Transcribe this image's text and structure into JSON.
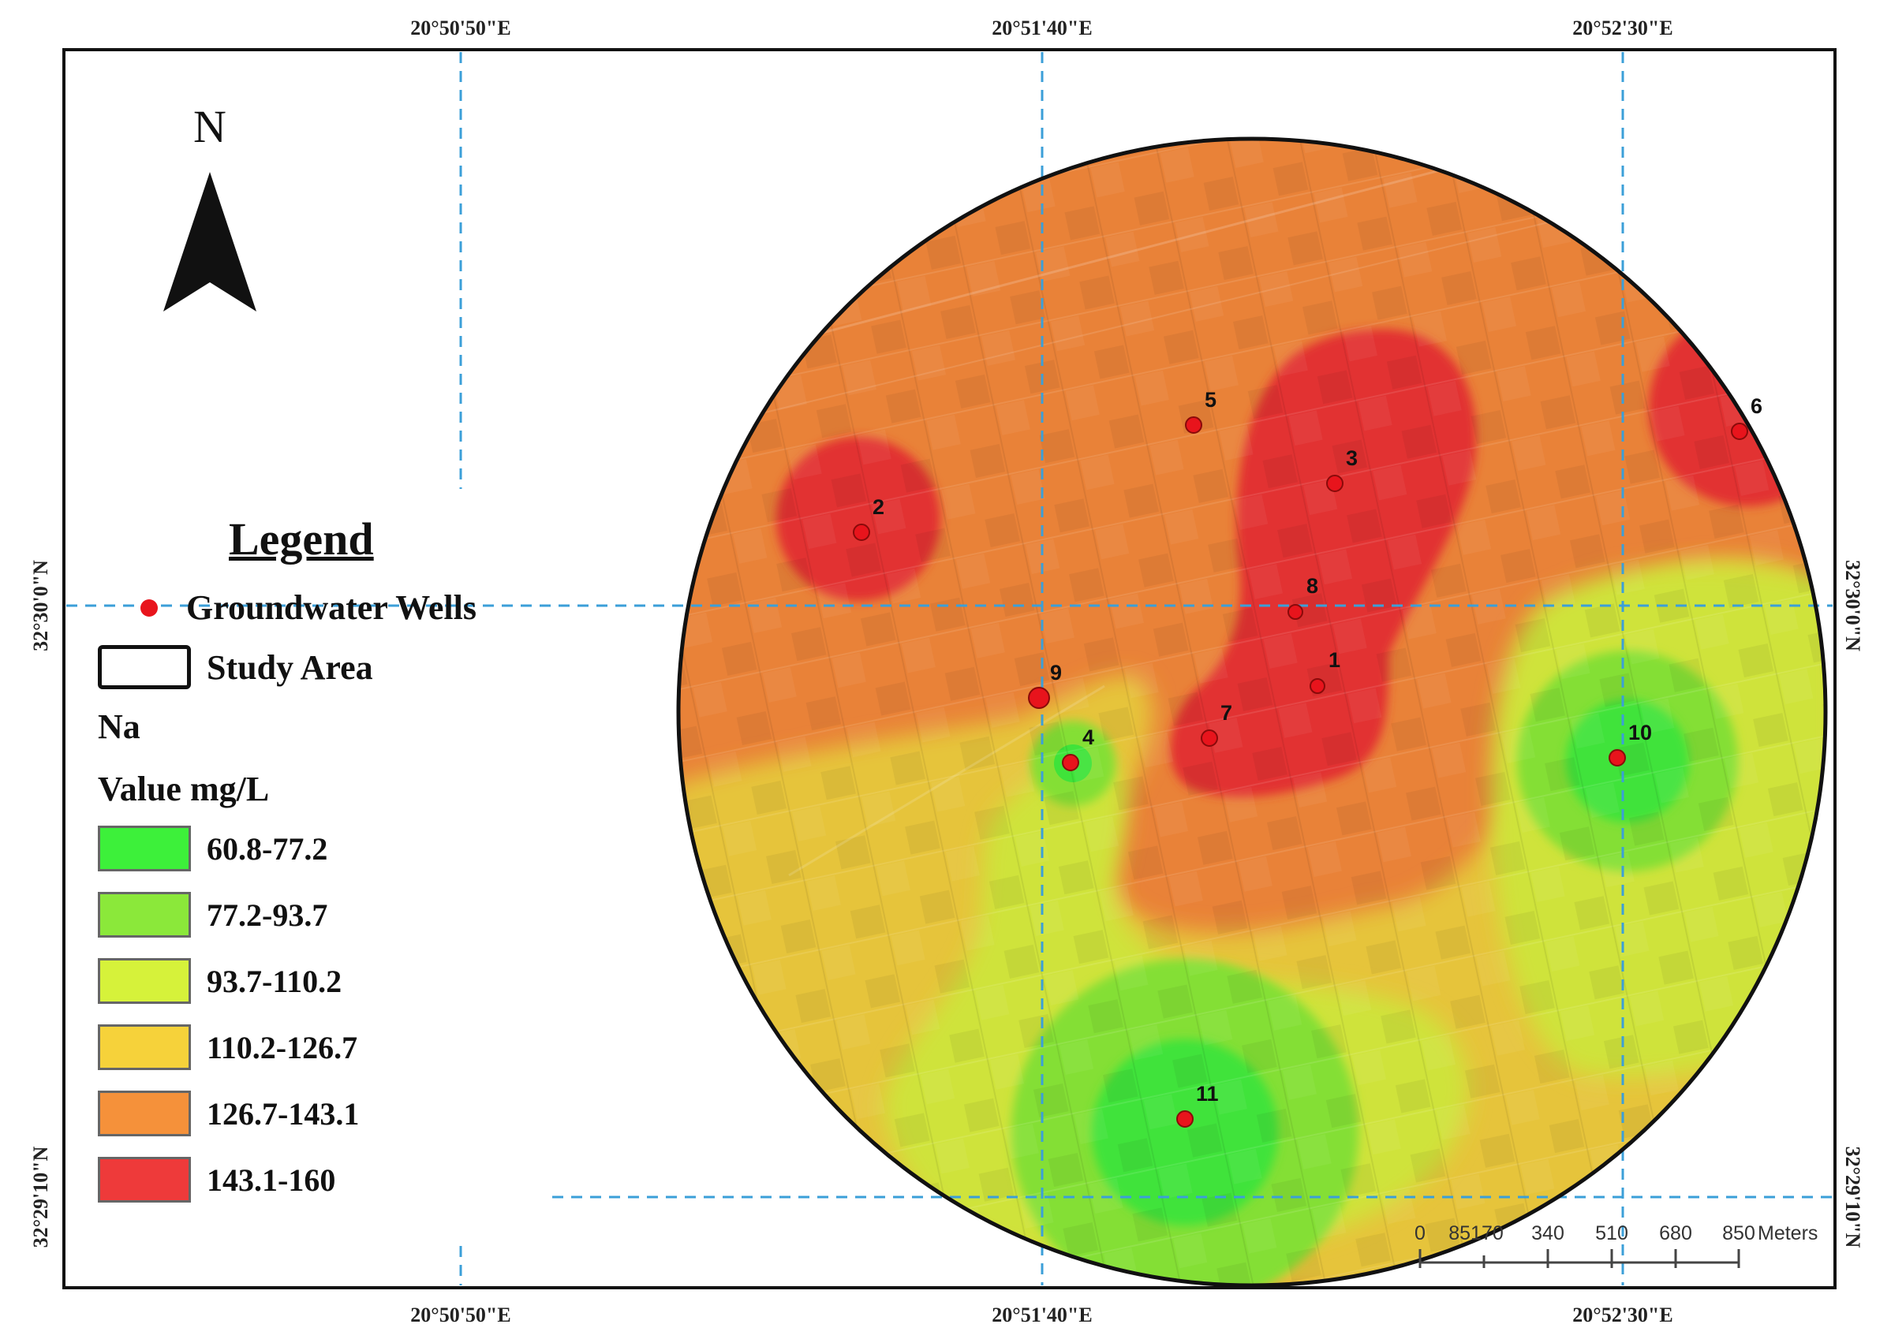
{
  "north_arrow": {
    "label": "N"
  },
  "graticule": {
    "top_labels": [
      "20°50'50\"E",
      "20°51'40\"E",
      "20°52'30\"E"
    ],
    "bottom_labels": [
      "20°50'50\"E",
      "20°51'40\"E",
      "20°52'30\"E"
    ],
    "left_labels": [
      "32°30'0\"N",
      "32°29'10\"N"
    ],
    "right_labels": [
      "32°30'0\"N",
      "32°29'10\"N"
    ]
  },
  "legend": {
    "title": "Legend",
    "wells_label": "Groundwater Wells",
    "study_area_label": "Study Area",
    "variable": "Na",
    "value_label": "Value mg/L",
    "classes": [
      {
        "label": "60.8-77.2",
        "color": "#3df03a"
      },
      {
        "label": "77.2-93.7",
        "color": "#8be83a"
      },
      {
        "label": "93.7-110.2",
        "color": "#d6f23a"
      },
      {
        "label": "110.2-126.7",
        "color": "#f6d23a"
      },
      {
        "label": "126.7-143.1",
        "color": "#f5913a"
      },
      {
        "label": "143.1-160",
        "color": "#ee3a3a"
      }
    ]
  },
  "wells": [
    {
      "id": "1"
    },
    {
      "id": "2"
    },
    {
      "id": "3"
    },
    {
      "id": "4"
    },
    {
      "id": "5"
    },
    {
      "id": "6"
    },
    {
      "id": "7"
    },
    {
      "id": "8"
    },
    {
      "id": "9"
    },
    {
      "id": "10"
    },
    {
      "id": "11"
    }
  ],
  "scale_bar": {
    "ticks": [
      "0",
      "85170",
      "340",
      "510",
      "680",
      "850"
    ],
    "units": "Meters"
  },
  "colors": {
    "well": "#e8141c",
    "grid_line": "#3b9fd8",
    "frame": "#111111"
  }
}
